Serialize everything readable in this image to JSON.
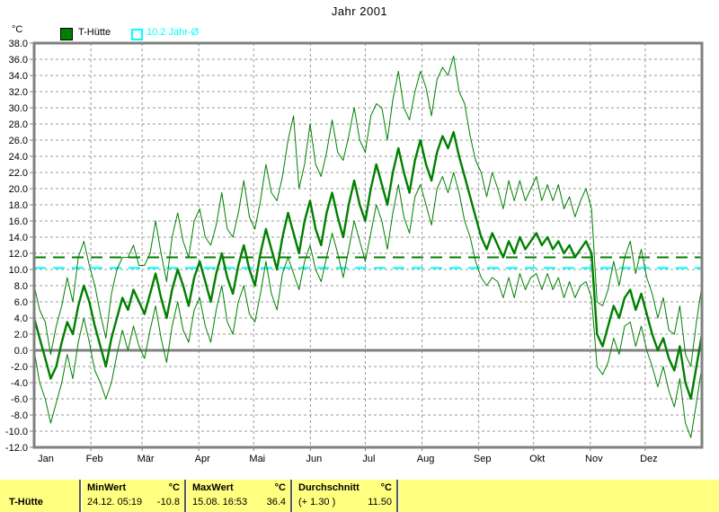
{
  "title": "Jahr 2001",
  "legend": {
    "unit_label": "°C",
    "series1": {
      "label": "T-Hütte",
      "color": "#008000"
    },
    "series2": {
      "label": "10.2 Jahr-Ø",
      "color": "#00FFFF"
    }
  },
  "colors": {
    "grid": "#989898",
    "frame": "#808080",
    "green": "#008000",
    "cyan": "#00FFFF",
    "panel_yellow": "#FFFF80"
  },
  "chart_data": {
    "type": "line",
    "title": "Jahr 2001",
    "ylabel": "°C",
    "ylim": [
      -12,
      38
    ],
    "ytick_step": 2,
    "ytick_labels": [
      "38.0",
      "36.0",
      "34.0",
      "32.0",
      "30.0",
      "28.0",
      "26.0",
      "24.0",
      "22.0",
      "20.0",
      "18.0",
      "16.0",
      "14.0",
      "12.0",
      "10.0",
      "8.0",
      "6.0",
      "4.0",
      "2.0",
      "0.0",
      "-2.0",
      "-4.0",
      "-6.0",
      "-8.0",
      "-10.0",
      "-12.0"
    ],
    "grid": true,
    "months": [
      "Jan",
      "Feb",
      "Mär",
      "Apr",
      "Mai",
      "Jun",
      "Jul",
      "Aug",
      "Sep",
      "Okt",
      "Nov",
      "Dez"
    ],
    "month_start_days": [
      0,
      31,
      59,
      90,
      120,
      151,
      181,
      212,
      243,
      273,
      304,
      334
    ],
    "days_per_year": 365,
    "reference_lines": [
      {
        "id": "year-average-line",
        "label": "Durchschnitt 11.50",
        "value": 11.5,
        "color": "#008000"
      },
      {
        "id": "ten-year-average-line",
        "label": "10.2 Jahr-Ø",
        "value": 10.2,
        "color": "#00FFFF"
      }
    ],
    "series": [
      {
        "name": "T-Hütte Tagesmaximum",
        "role": "max",
        "color": "#008000",
        "width": 1,
        "values": [
          8.0,
          5.0,
          3.5,
          -0.5,
          3.0,
          5.5,
          9.0,
          6.0,
          11.5,
          13.5,
          10.5,
          8.0,
          4.5,
          1.5,
          7.0,
          10.0,
          11.5,
          11.5,
          13.0,
          10.5,
          10.5,
          12.0,
          16.0,
          12.0,
          8.5,
          14.0,
          17.0,
          13.5,
          11.5,
          16.0,
          17.5,
          14.0,
          13.0,
          15.5,
          19.5,
          15.0,
          14.0,
          17.0,
          21.0,
          16.5,
          15.0,
          18.5,
          23.0,
          19.5,
          18.5,
          21.5,
          26.0,
          29.0,
          20.0,
          23.0,
          28.0,
          23.0,
          21.5,
          24.5,
          28.5,
          24.5,
          23.5,
          26.5,
          30.0,
          26.0,
          24.5,
          29.0,
          30.5,
          30.0,
          26.0,
          31.0,
          34.5,
          30.0,
          28.5,
          32.0,
          34.5,
          32.5,
          29.0,
          33.5,
          35.0,
          34.0,
          36.4,
          32.0,
          30.5,
          26.5,
          23.5,
          22.0,
          19.0,
          22.0,
          20.0,
          17.5,
          21.0,
          18.5,
          21.0,
          18.5,
          20.0,
          21.5,
          18.5,
          20.5,
          18.5,
          20.5,
          17.5,
          19.0,
          16.5,
          18.5,
          20.0,
          17.5,
          6.0,
          5.5,
          7.5,
          11.0,
          8.0,
          11.5,
          13.5,
          9.5,
          12.5,
          9.0,
          7.0,
          4.0,
          6.5,
          2.5,
          2.0,
          5.5,
          -0.5,
          -2.0,
          3.5,
          8.0
        ]
      },
      {
        "name": "T-Hütte Tagesmittel",
        "role": "mean",
        "color": "#008000",
        "width": 2.4,
        "values": [
          4.0,
          1.5,
          -1.0,
          -3.5,
          -2.0,
          1.0,
          3.5,
          2.0,
          5.5,
          8.0,
          6.0,
          3.0,
          0.5,
          -2.0,
          1.5,
          4.0,
          6.5,
          5.0,
          7.5,
          6.0,
          4.5,
          7.0,
          9.5,
          6.5,
          4.0,
          7.5,
          10.0,
          8.0,
          5.5,
          9.0,
          11.0,
          8.5,
          6.0,
          9.5,
          12.0,
          9.0,
          7.0,
          10.5,
          13.0,
          10.0,
          8.0,
          12.0,
          15.0,
          12.5,
          10.0,
          14.0,
          17.0,
          14.5,
          12.0,
          16.0,
          18.5,
          15.0,
          13.0,
          17.0,
          19.5,
          16.5,
          14.0,
          18.0,
          21.0,
          18.0,
          16.0,
          20.0,
          23.0,
          20.5,
          18.0,
          22.0,
          25.0,
          22.0,
          19.5,
          23.5,
          26.0,
          23.0,
          21.0,
          24.5,
          26.5,
          25.0,
          27.0,
          24.0,
          21.5,
          19.0,
          16.5,
          14.0,
          12.5,
          14.5,
          13.0,
          11.5,
          13.5,
          12.0,
          14.0,
          12.5,
          13.5,
          14.5,
          13.0,
          14.0,
          12.5,
          13.5,
          12.0,
          13.0,
          11.5,
          12.5,
          13.5,
          12.0,
          2.0,
          0.5,
          3.0,
          5.5,
          4.0,
          6.5,
          7.5,
          5.0,
          7.0,
          4.5,
          2.0,
          0.0,
          1.5,
          -1.0,
          -2.5,
          0.5,
          -4.0,
          -6.0,
          -2.0,
          2.0
        ]
      },
      {
        "name": "T-Hütte Tagesminimum",
        "role": "min",
        "color": "#008000",
        "width": 1,
        "values": [
          0.0,
          -4.0,
          -6.0,
          -9.0,
          -6.5,
          -4.0,
          -0.5,
          -3.5,
          1.0,
          4.0,
          1.0,
          -2.5,
          -4.0,
          -6.0,
          -4.0,
          -0.5,
          2.5,
          0.0,
          3.0,
          0.5,
          -1.0,
          2.5,
          5.5,
          1.5,
          -1.5,
          3.0,
          6.0,
          2.5,
          1.0,
          5.0,
          6.5,
          3.0,
          1.0,
          5.0,
          8.0,
          3.5,
          2.0,
          6.0,
          8.0,
          4.5,
          3.5,
          7.0,
          11.0,
          7.0,
          5.0,
          9.5,
          11.5,
          9.5,
          7.5,
          11.0,
          13.0,
          10.0,
          8.5,
          11.5,
          14.5,
          12.0,
          9.0,
          12.5,
          16.0,
          13.5,
          11.0,
          14.5,
          18.0,
          16.0,
          12.5,
          17.0,
          20.5,
          16.5,
          14.5,
          19.0,
          20.5,
          18.0,
          15.5,
          20.0,
          21.5,
          19.5,
          22.0,
          19.5,
          16.0,
          14.0,
          11.0,
          9.0,
          8.0,
          9.0,
          8.5,
          6.5,
          9.0,
          6.5,
          9.5,
          7.5,
          9.0,
          9.5,
          7.5,
          9.5,
          7.5,
          9.0,
          6.5,
          8.5,
          6.5,
          8.0,
          8.5,
          6.5,
          -2.0,
          -3.0,
          -1.5,
          1.5,
          -0.5,
          3.0,
          3.5,
          0.5,
          3.0,
          0.0,
          -2.0,
          -4.5,
          -2.0,
          -5.0,
          -7.0,
          -3.5,
          -9.0,
          -10.8,
          -6.5,
          -2.0
        ]
      }
    ]
  },
  "status_bar": {
    "row_label": "T-Hütte",
    "columns": [
      {
        "header": "MinWert",
        "unit": "°C",
        "value_left": "24.12. 05:19",
        "value_right": "-10.8"
      },
      {
        "header": "MaxWert",
        "unit": "°C",
        "value_left": "15.08. 16:53",
        "value_right": "36.4"
      },
      {
        "header": "Durchschnitt",
        "unit": "°C",
        "value_left": "(+ 1.30 )",
        "value_right": "11.50"
      }
    ]
  }
}
